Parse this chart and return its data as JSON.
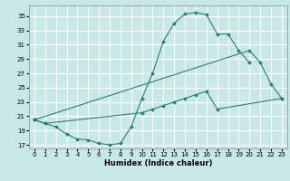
{
  "title": "",
  "xlabel": "Humidex (Indice chaleur)",
  "background_color": "#c8e8e8",
  "grid_color": "#ffffff",
  "line_color": "#2d7d6e",
  "xlim": [
    -0.5,
    23.5
  ],
  "ylim": [
    16.5,
    36.5
  ],
  "xticks": [
    0,
    1,
    2,
    3,
    4,
    5,
    6,
    7,
    8,
    9,
    10,
    11,
    12,
    13,
    14,
    15,
    16,
    17,
    18,
    19,
    20,
    21,
    22,
    23
  ],
  "yticks": [
    17,
    19,
    21,
    23,
    25,
    27,
    29,
    31,
    33,
    35
  ],
  "line1_x": [
    0,
    1,
    2,
    3,
    4,
    5,
    6,
    7,
    8,
    9,
    10,
    11,
    12,
    13,
    14,
    15,
    16,
    17,
    18,
    19,
    20
  ],
  "line1_y": [
    20.5,
    20.0,
    19.5,
    18.5,
    17.8,
    17.7,
    17.2,
    17.0,
    17.2,
    19.5,
    23.5,
    27.0,
    31.5,
    34.0,
    35.3,
    35.5,
    35.2,
    32.5,
    32.5,
    30.2,
    28.5
  ],
  "line2_x": [
    0,
    20,
    21,
    22,
    23
  ],
  "line2_y": [
    20.5,
    30.2,
    28.5,
    25.5,
    23.5
  ],
  "line3_x": [
    0,
    1,
    10,
    11,
    12,
    13,
    14,
    15,
    16,
    17,
    23
  ],
  "line3_y": [
    20.5,
    20.0,
    21.5,
    22.0,
    22.5,
    23.0,
    23.5,
    24.0,
    24.5,
    22.0,
    23.5
  ]
}
